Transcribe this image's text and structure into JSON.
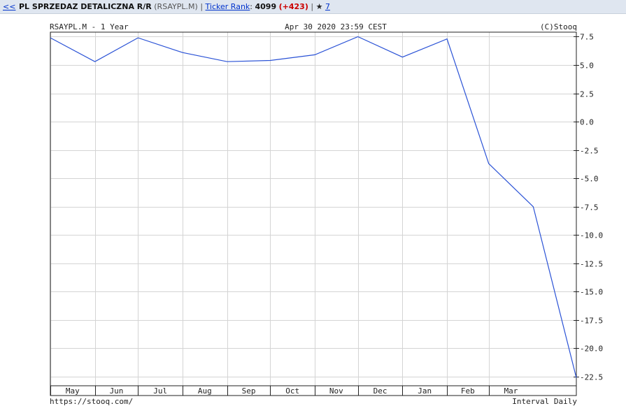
{
  "header": {
    "back_label": "<<",
    "title": "PL SPRZEDAZ DETALICZNA R/R",
    "symbol": "(RSAYPL.M)",
    "separator": "|",
    "rank_label": "Ticker Rank",
    "rank_colon": ":",
    "rank_value": "4099",
    "rank_change": "(+423)",
    "star_icon": "star-icon",
    "star_glyph": "★",
    "favorites_count": "7"
  },
  "chart_meta": {
    "top_left": "RSAYPL.M - 1 Year",
    "top_center": "Apr 30 2020 23:59 CEST",
    "top_right": "(C)Stooq",
    "bottom_left": "https://stooq.com/",
    "bottom_right": "Interval Daily"
  },
  "chart_data": {
    "type": "line",
    "line_color": "#2a52d6",
    "grid": true,
    "ylim": [
      -23.3,
      7.9
    ],
    "y_ticks": [
      7.5,
      5.0,
      2.5,
      0.0,
      -2.5,
      -5.0,
      -7.5,
      -10.0,
      -12.5,
      -15.0,
      -17.5,
      -20.0,
      -22.5
    ],
    "y_tick_labels": [
      "7.5",
      "5.0",
      "2.5",
      "0.0",
      "-2.5",
      "-5.0",
      "-7.5",
      "-10.0",
      "-12.5",
      "-15.0",
      "-17.5",
      "-20.0",
      "-22.5"
    ],
    "x_labels": [
      "May",
      "Jun",
      "Jul",
      "Aug",
      "Sep",
      "Oct",
      "Nov",
      "Dec",
      "Jan",
      "Feb",
      "Mar"
    ],
    "series": [
      {
        "x": [
          "2019-04-30",
          "2019-05-31",
          "2019-06-30",
          "2019-07-31",
          "2019-08-31",
          "2019-09-30",
          "2019-10-31",
          "2019-11-30",
          "2019-12-31",
          "2020-01-31",
          "2020-02-29",
          "2020-03-31",
          "2020-04-30"
        ],
        "values": [
          7.4,
          5.3,
          7.4,
          6.1,
          5.3,
          5.4,
          5.9,
          7.5,
          5.7,
          7.3,
          -3.7,
          -7.5,
          -22.6
        ]
      }
    ]
  }
}
